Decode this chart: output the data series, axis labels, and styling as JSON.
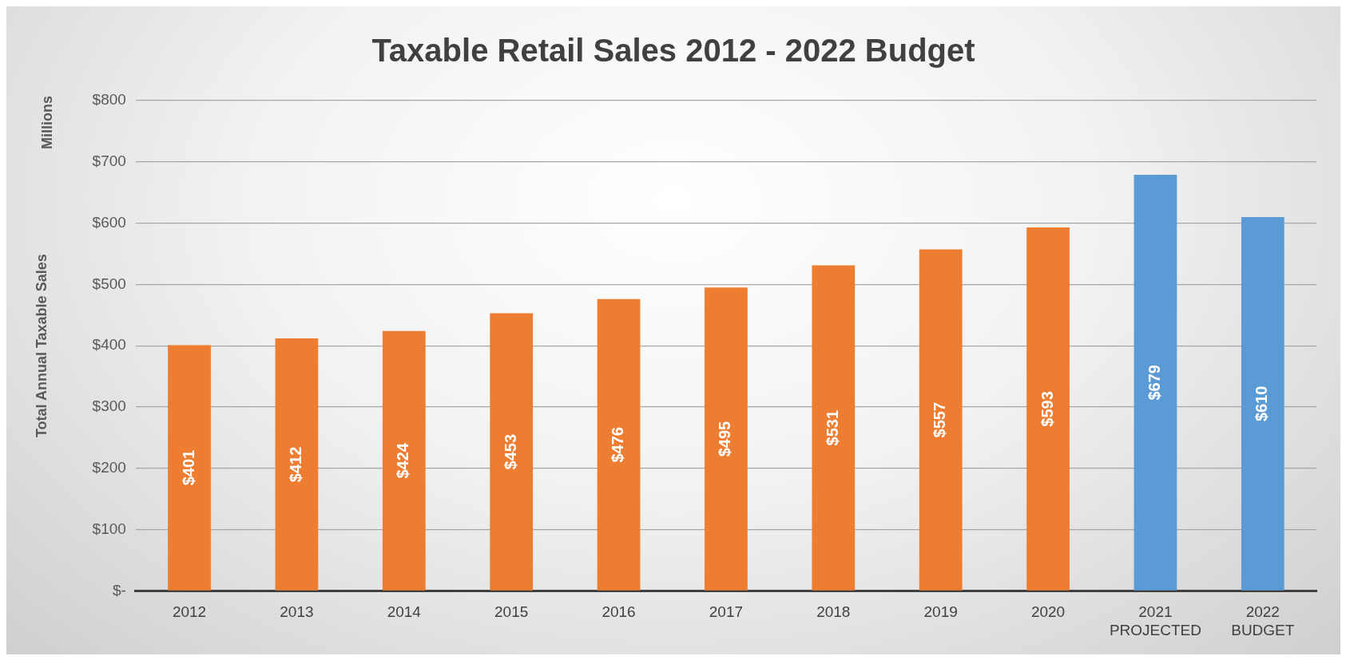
{
  "chart_data": {
    "type": "bar",
    "title": "Taxable Retail Sales 2012 - 2022 Budget",
    "ylabel": "Total Annual Taxable Sales",
    "annotations": [
      "Millions"
    ],
    "categories": [
      "2012",
      "2013",
      "2014",
      "2015",
      "2016",
      "2017",
      "2018",
      "2019",
      "2020",
      "2021\nPROJECTED",
      "2022\nBUDGET"
    ],
    "values": [
      401,
      412,
      424,
      453,
      476,
      495,
      531,
      557,
      593,
      679,
      610
    ],
    "colors": [
      "#ed7d31",
      "#ed7d31",
      "#ed7d31",
      "#ed7d31",
      "#ed7d31",
      "#ed7d31",
      "#ed7d31",
      "#ed7d31",
      "#ed7d31",
      "#5b9bd5",
      "#5b9bd5"
    ],
    "value_labels": [
      "$401",
      "$412",
      "$424",
      "$453",
      "$476",
      "$495",
      "$531",
      "$557",
      "$593",
      "$679",
      "$610"
    ],
    "ylim": [
      0,
      800
    ],
    "yticks": [
      {
        "value": 0,
        "label": "$-"
      },
      {
        "value": 100,
        "label": "$100"
      },
      {
        "value": 200,
        "label": "$200"
      },
      {
        "value": 300,
        "label": "$300"
      },
      {
        "value": 400,
        "label": "$400"
      },
      {
        "value": 500,
        "label": "$500"
      },
      {
        "value": 600,
        "label": "$600"
      },
      {
        "value": 700,
        "label": "$700"
      },
      {
        "value": 800,
        "label": "$800"
      }
    ],
    "grid": "y",
    "legend": false
  }
}
